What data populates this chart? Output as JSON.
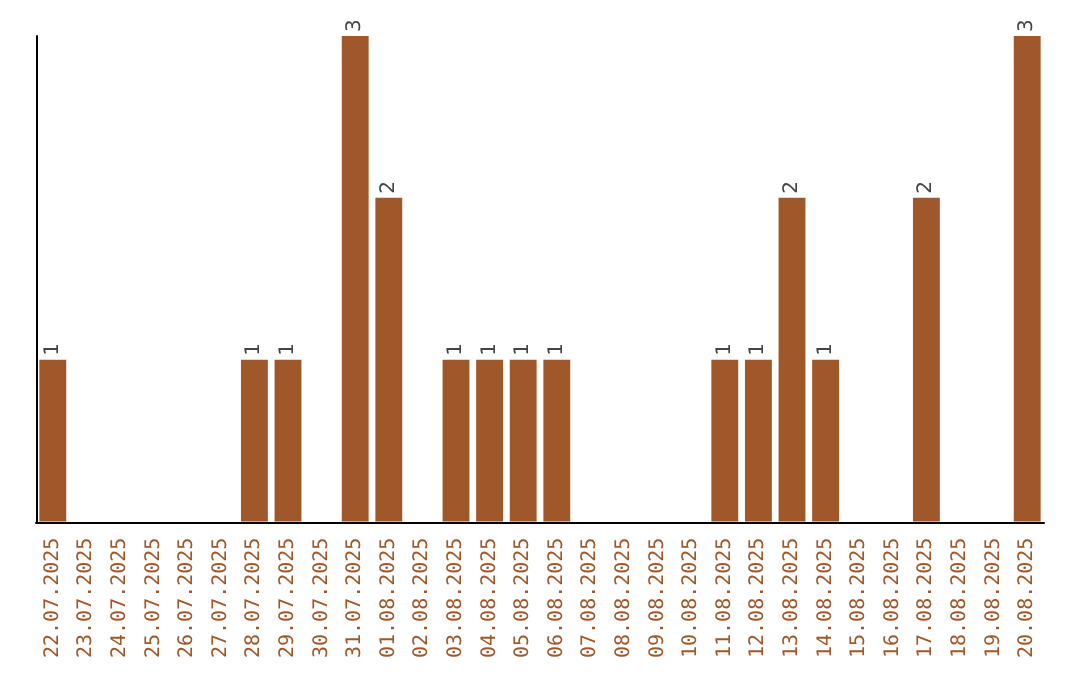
{
  "chart_data": {
    "type": "bar",
    "categories": [
      "22.07.2025",
      "23.07.2025",
      "24.07.2025",
      "25.07.2025",
      "26.07.2025",
      "27.07.2025",
      "28.07.2025",
      "29.07.2025",
      "30.07.2025",
      "31.07.2025",
      "01.08.2025",
      "02.08.2025",
      "03.08.2025",
      "04.08.2025",
      "05.08.2025",
      "06.08.2025",
      "07.08.2025",
      "08.08.2025",
      "09.08.2025",
      "10.08.2025",
      "11.08.2025",
      "12.08.2025",
      "13.08.2025",
      "14.08.2025",
      "15.08.2025",
      "16.08.2025",
      "17.08.2025",
      "18.08.2025",
      "19.08.2025",
      "20.08.2025"
    ],
    "values": [
      1,
      0,
      0,
      0,
      0,
      0,
      1,
      1,
      0,
      3,
      2,
      0,
      1,
      1,
      1,
      1,
      0,
      0,
      0,
      0,
      1,
      1,
      2,
      1,
      0,
      0,
      2,
      0,
      0,
      3
    ],
    "value_labels": [
      "1",
      null,
      null,
      null,
      null,
      null,
      "1",
      "1",
      null,
      "3",
      "2",
      null,
      "1",
      "1",
      "1",
      "1",
      null,
      null,
      null,
      null,
      "1",
      "1",
      "2",
      "1",
      null,
      null,
      "2",
      null,
      null,
      "3"
    ],
    "color": "#a0582a"
  }
}
